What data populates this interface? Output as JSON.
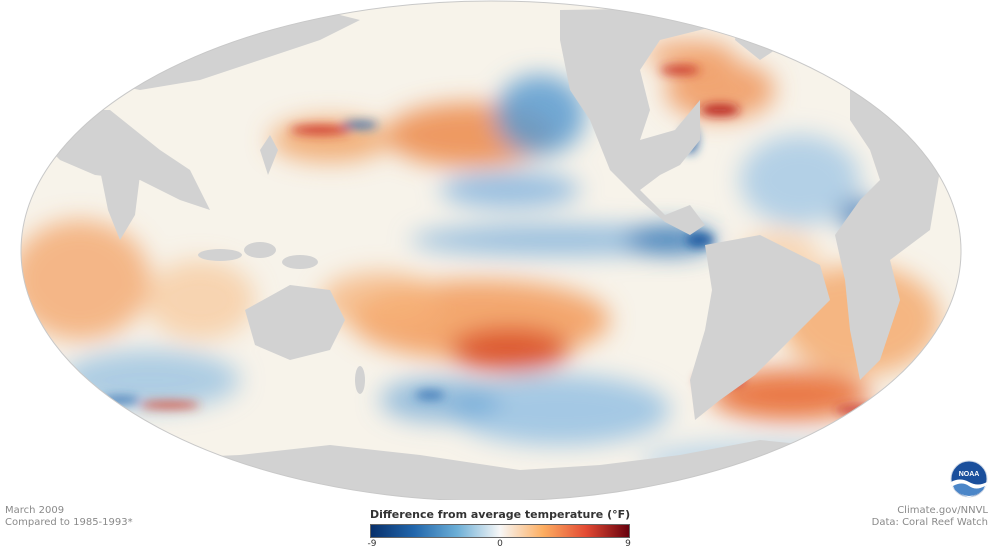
{
  "footer_left": {
    "date": "March 2009",
    "baseline": "Compared to 1985-1993*"
  },
  "footer_right": {
    "credit": "Climate.gov/NNVL",
    "source": "Data: Coral Reef Watch"
  },
  "legend": {
    "title": "Difference from average temperature (°F)",
    "min_label": "-9",
    "mid_label": "0",
    "max_label": "9",
    "scale": [
      "#08306b",
      "#2166ac",
      "#6baed6",
      "#f7f7f7",
      "#fdae61",
      "#e34a33",
      "#67000d"
    ]
  },
  "logo": {
    "text": "NOAA"
  },
  "colors": {
    "land": "#d2d2d2",
    "ocean_neutral": "#f6f6f2",
    "warm": "#e8642c",
    "cool": "#3a82c4"
  }
}
